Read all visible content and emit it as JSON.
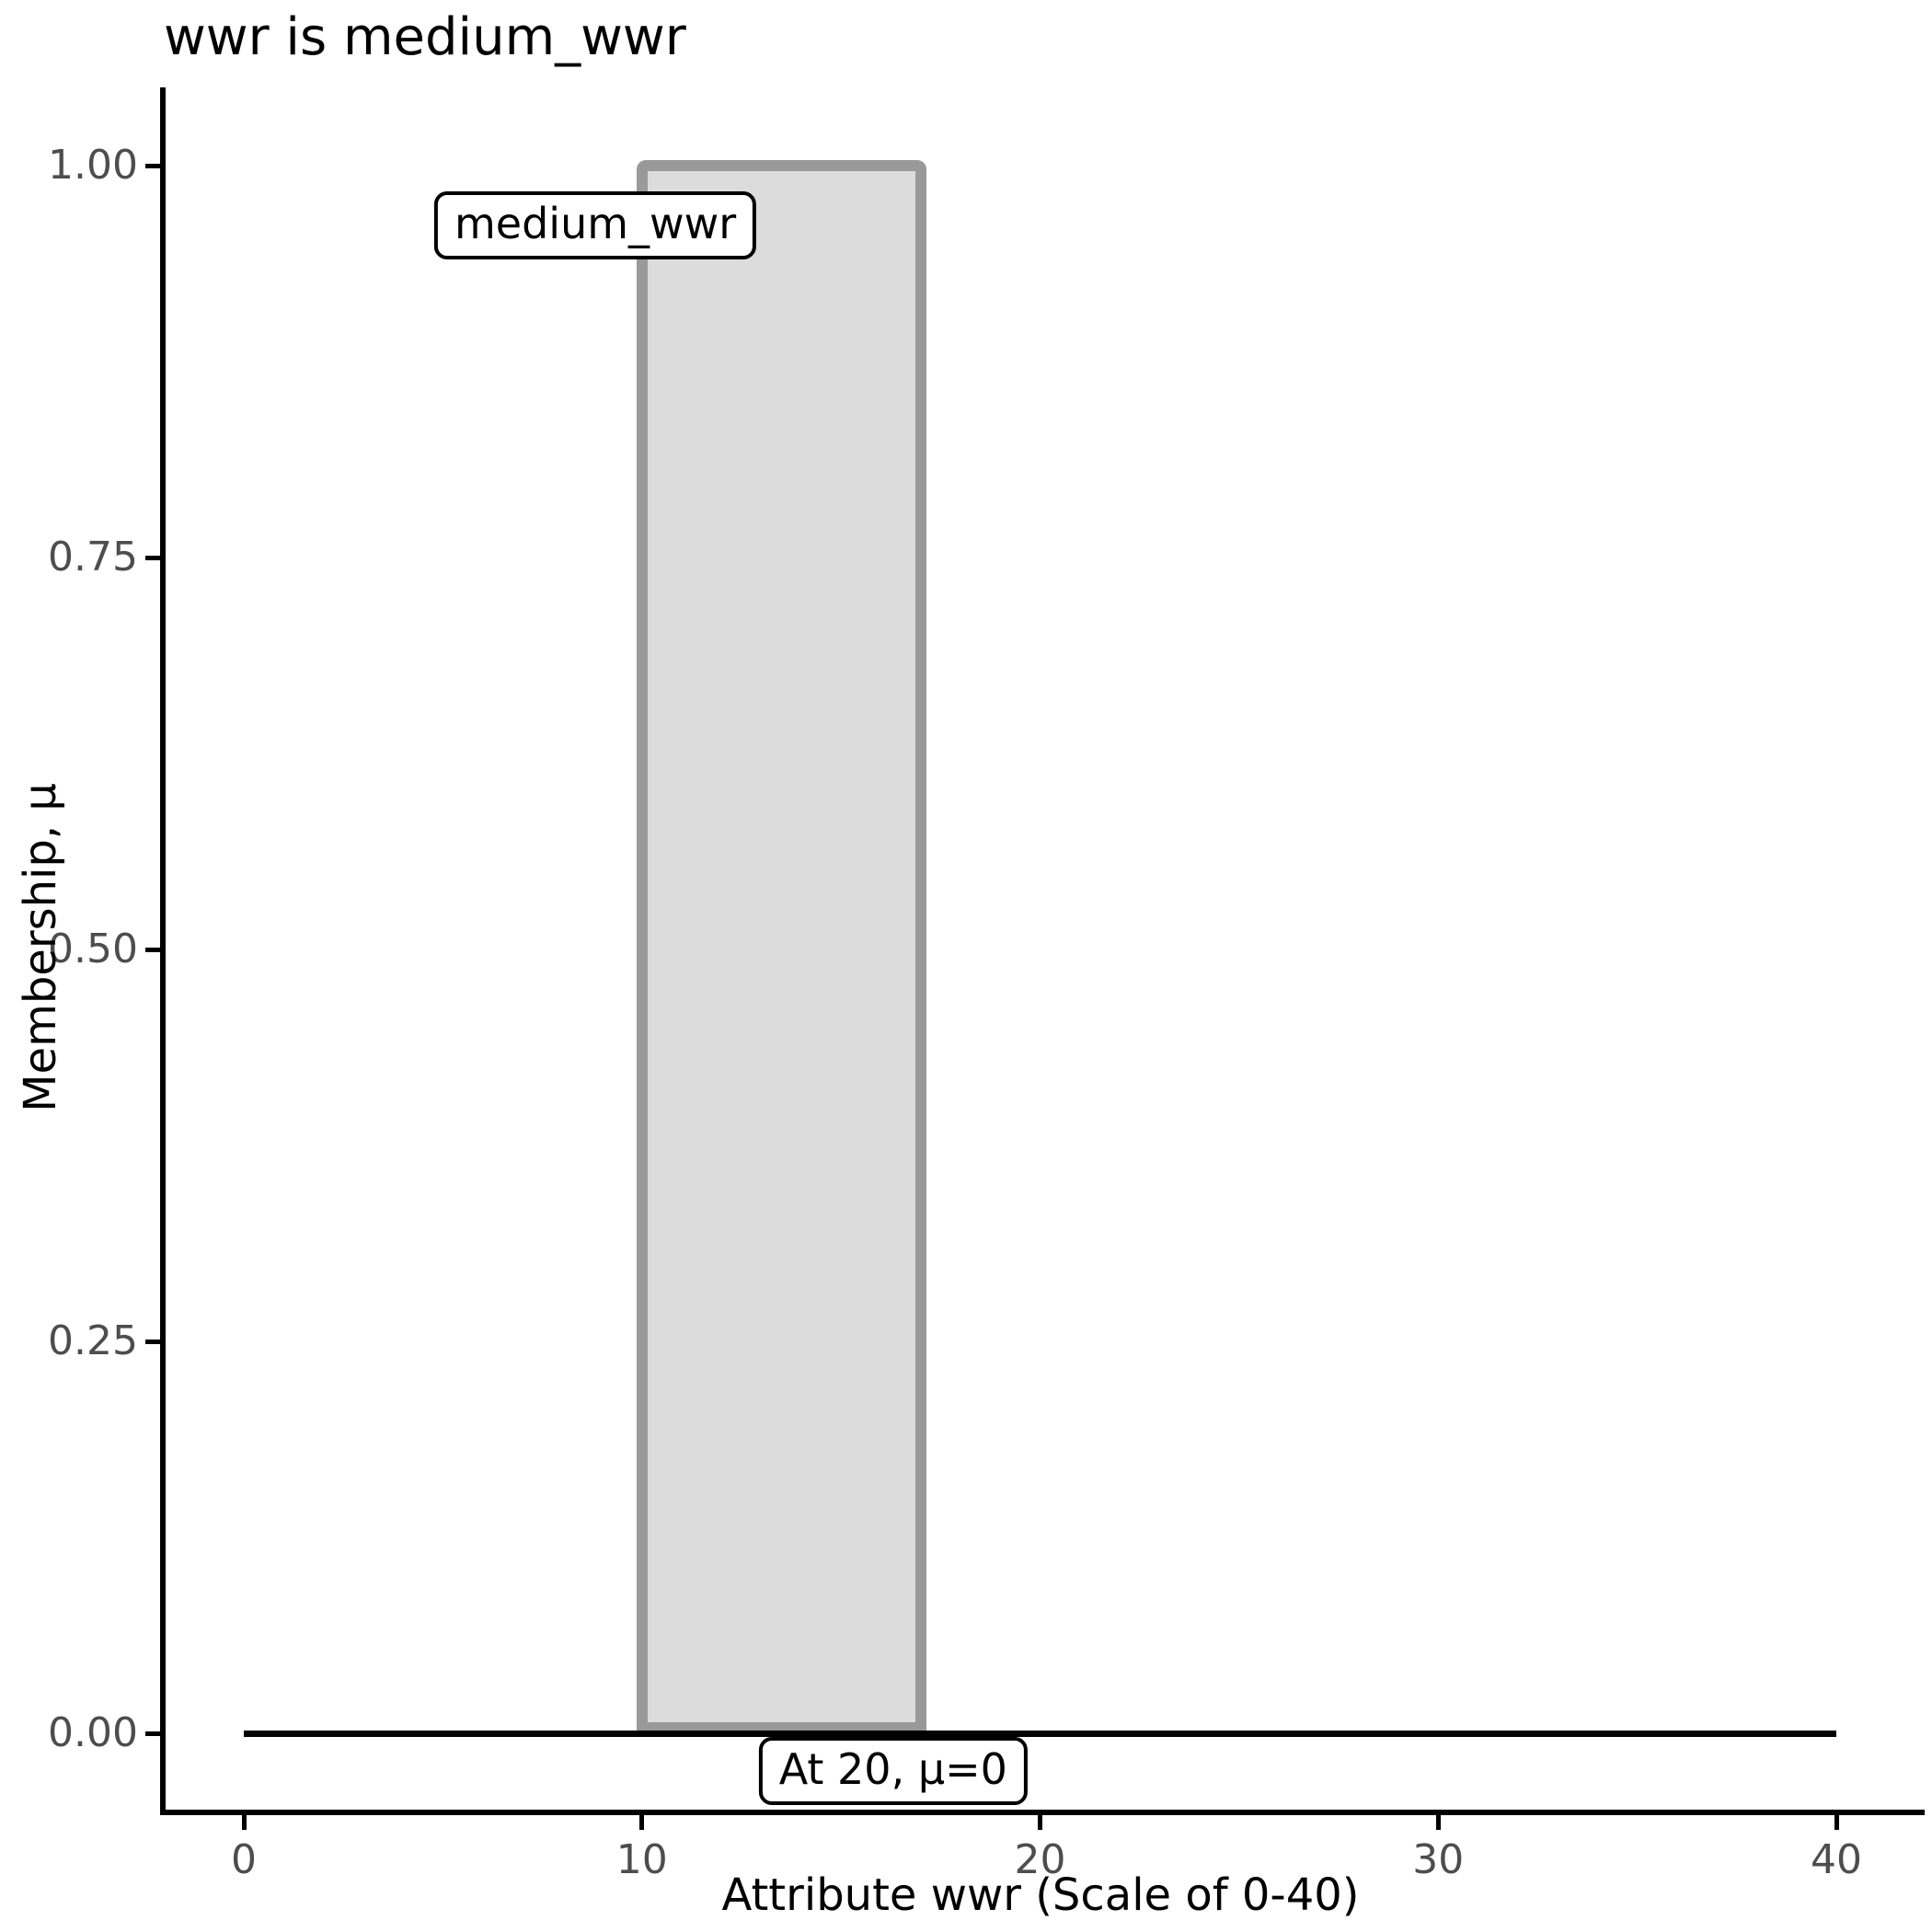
{
  "title": "wwr is medium_wwr",
  "axes": {
    "x_label": "Attribute wwr (Scale of 0-40)",
    "y_label": "Membership, μ"
  },
  "chart_data": {
    "type": "area",
    "title": "wwr is medium_wwr",
    "xlabel": "Attribute wwr (Scale of 0-40)",
    "ylabel": "Membership, μ",
    "xlim": [
      0,
      40
    ],
    "ylim": [
      0,
      1
    ],
    "grid": false,
    "legend": false,
    "x_ticks": [
      {
        "value": 0,
        "label": "0"
      },
      {
        "value": 10,
        "label": "10"
      },
      {
        "value": 20,
        "label": "20"
      },
      {
        "value": 30,
        "label": "30"
      },
      {
        "value": 40,
        "label": "40"
      }
    ],
    "y_ticks": [
      {
        "value": 0.0,
        "label": "0.00"
      },
      {
        "value": 0.25,
        "label": "0.25"
      },
      {
        "value": 0.5,
        "label": "0.50"
      },
      {
        "value": 0.75,
        "label": "0.75"
      },
      {
        "value": 1.0,
        "label": "1.00"
      }
    ],
    "series": [
      {
        "name": "medium_wwr",
        "shape": "rectangle",
        "description": "fuzzy set support rectangle, membership 1 between x=10 and x=17",
        "points": [
          [
            10,
            0
          ],
          [
            10,
            1
          ],
          [
            17,
            1
          ],
          [
            17,
            0
          ]
        ],
        "fill": "#dcdcdc",
        "stroke": "#999999"
      },
      {
        "name": "baseline_mu_zero",
        "shape": "line",
        "description": "membership value 0 along full attribute range",
        "points": [
          [
            0,
            0
          ],
          [
            40,
            0
          ]
        ],
        "stroke": "#000000"
      }
    ],
    "annotations": [
      {
        "text": "medium_wwr",
        "x": 8.83,
        "mu": 0.962
      },
      {
        "text": "At 20, μ=0",
        "x": 16.31,
        "mu": -0.024
      }
    ]
  },
  "colors": {
    "background": "#ffffff",
    "axis": "#000000",
    "tick_label": "#4d4d4d",
    "rect_fill": "#dcdcdc",
    "rect_stroke": "#999999",
    "baseline": "#000000",
    "label_box_bg": "#ffffff",
    "label_box_border": "#000000"
  }
}
